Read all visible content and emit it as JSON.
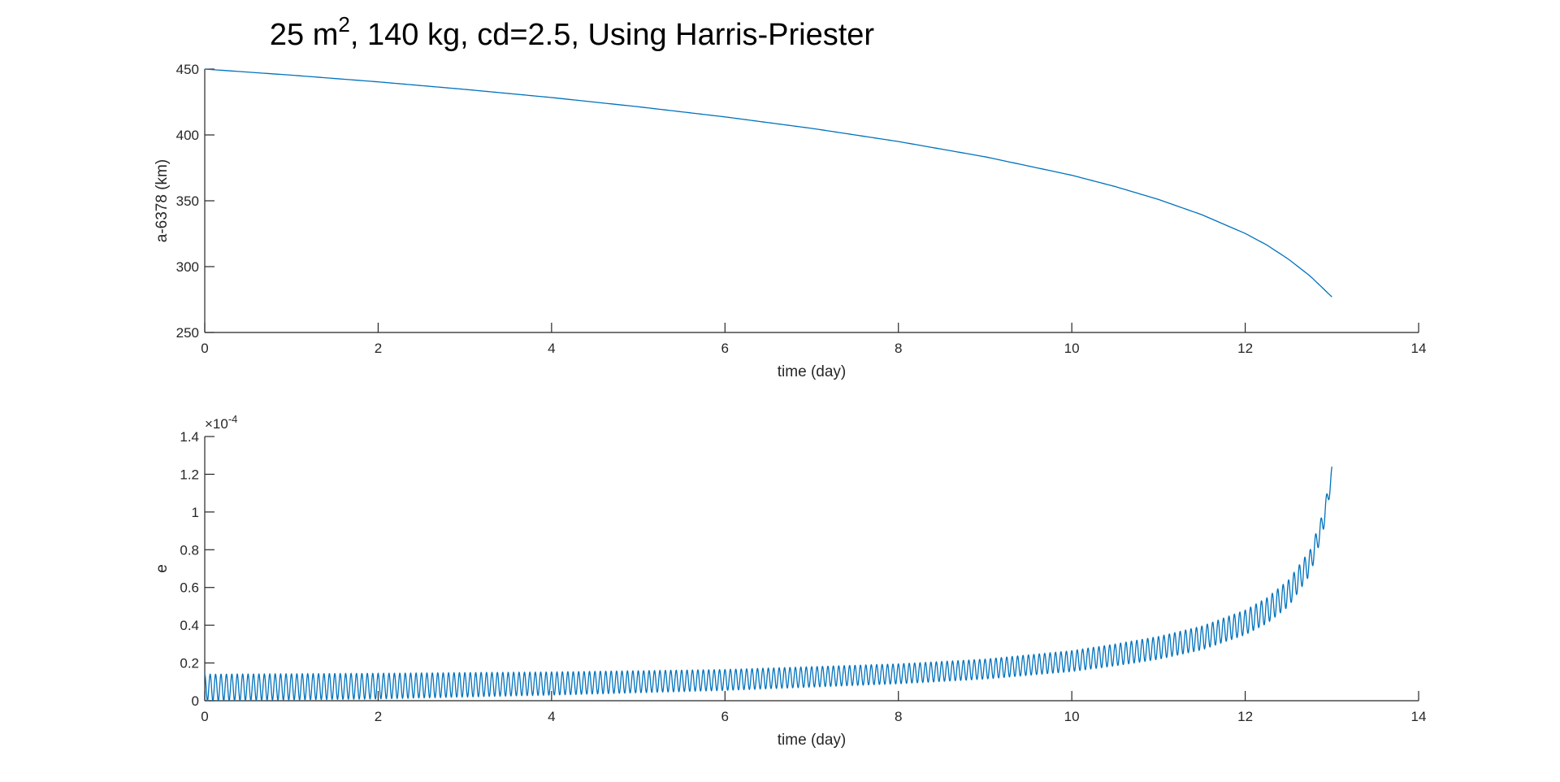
{
  "chart_data": {
    "title": {
      "main": "25 m",
      "superscript": "2",
      "rest": ", 140 kg, cd=2.5, Using Harris-Priester"
    },
    "line_color": "#0072BD",
    "axis_color": "#262626",
    "plots": [
      {
        "type": "line",
        "xlabel": "time (day)",
        "ylabel": "a-6378 (km)",
        "xlim": [
          0,
          14
        ],
        "ylim": [
          250,
          450
        ],
        "xticks": [
          0,
          2,
          4,
          6,
          8,
          10,
          12,
          14
        ],
        "yticks": [
          250,
          300,
          350,
          400,
          450
        ],
        "xtick_labels": [
          "0",
          "2",
          "4",
          "6",
          "8",
          "10",
          "12",
          "14"
        ],
        "ytick_labels": [
          "250",
          "300",
          "350",
          "400",
          "450"
        ],
        "series": [
          {
            "x": [
              0,
              1,
              2,
              3,
              4,
              5,
              6,
              7,
              8,
              9,
              10,
              10.5,
              11,
              11.5,
              12,
              12.25,
              12.5,
              12.75,
              13
            ],
            "y": [
              450,
              445.4,
              440.3,
              434.6,
              428.4,
              421.4,
              413.7,
              405.0,
              395.0,
              383.4,
              369.4,
              360.8,
              351.0,
              339.4,
              325.2,
              316.4,
              305.6,
              292.8,
              277
            ]
          }
        ]
      },
      {
        "type": "line",
        "xlabel": "time (day)",
        "ylabel": "e",
        "exponent_label": "×10",
        "exponent_power": "-4",
        "xlim": [
          0,
          14
        ],
        "ylim": [
          0,
          1.4
        ],
        "xticks": [
          0,
          2,
          4,
          6,
          8,
          10,
          12,
          14
        ],
        "yticks": [
          0,
          0.2,
          0.4,
          0.6,
          0.8,
          1,
          1.2,
          1.4
        ],
        "xtick_labels": [
          "0",
          "2",
          "4",
          "6",
          "8",
          "10",
          "12",
          "14"
        ],
        "ytick_labels": [
          "0",
          "0.2",
          "0.4",
          "0.6",
          "0.8",
          "1",
          "1.2",
          "1.4"
        ],
        "oscillation_period_days": 0.0625,
        "series": [
          {
            "name_note": "envelope of oscillating curve",
            "x": [
              0,
              2,
              4,
              6,
              8,
              9,
              10,
              10.5,
              11,
              11.5,
              12,
              12.25,
              12.5,
              12.75,
              12.9,
              13
            ],
            "upper": [
              0.14,
              0.145,
              0.152,
              0.165,
              0.195,
              0.22,
              0.265,
              0.3,
              0.34,
              0.395,
              0.48,
              0.545,
              0.64,
              0.8,
              1.0,
              1.24
            ],
            "lower": [
              0.0,
              0.01,
              0.03,
              0.055,
              0.09,
              0.115,
              0.155,
              0.185,
              0.22,
              0.27,
              0.35,
              0.41,
              0.5,
              0.67,
              0.9,
              1.15
            ]
          }
        ]
      }
    ]
  }
}
